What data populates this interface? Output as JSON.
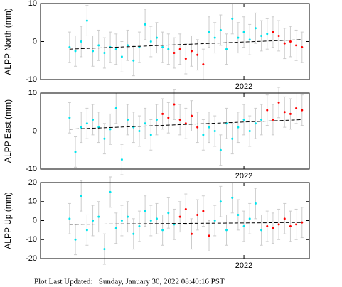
{
  "chart_data": [
    {
      "type": "scatter",
      "ylabel": "ALPP North (mm)",
      "xlim": [
        2021.72,
        2022.09
      ],
      "xticks": [
        2022
      ],
      "ylim": [
        -10,
        10
      ],
      "yticks": [
        -10,
        0,
        10
      ],
      "error": 4,
      "series": [
        {
          "color": "#00e5ee",
          "x": [
            2021.76,
            2021.768,
            2021.776,
            2021.784,
            2021.792,
            2021.8,
            2021.808,
            2021.816,
            2021.824,
            2021.832,
            2021.84,
            2021.848,
            2021.856,
            2021.864,
            2021.872,
            2021.88,
            2021.888,
            2021.896,
            2021.952,
            2021.96,
            2021.968,
            2021.976,
            2021.984,
            2021.992,
            2022.0,
            2022.008,
            2022.016,
            2022.024,
            2022.032
          ],
          "values": [
            -1.5,
            -2.5,
            0,
            5.5,
            -2.5,
            -1,
            -3,
            -1.5,
            -2,
            -4,
            -1,
            -5,
            -1.5,
            4.5,
            0,
            1,
            -1.5,
            -2,
            2.5,
            1,
            3,
            -2,
            6,
            1,
            2.5,
            0.5,
            3.5,
            1.5,
            2
          ]
        },
        {
          "color": "#ff0000",
          "x": [
            2021.904,
            2021.912,
            2021.92,
            2021.928,
            2021.936,
            2021.944,
            2022.04,
            2022.048,
            2022.056,
            2022.064,
            2022.072,
            2022.08
          ],
          "values": [
            -3,
            -2,
            -4.5,
            -2.5,
            -3.5,
            -6,
            2.5,
            1.5,
            -0.5,
            0,
            -1,
            -1.5
          ]
        }
      ],
      "trend": {
        "color": "#000000",
        "x": [
          2021.76,
          2022.08
        ],
        "values": [
          -2,
          0.5
        ]
      }
    },
    {
      "type": "scatter",
      "ylabel": "ALPP East (mm)",
      "xlim": [
        2021.72,
        2022.09
      ],
      "xticks": [
        2022
      ],
      "ylim": [
        -10,
        10
      ],
      "yticks": [
        -10,
        0,
        10
      ],
      "error": 4,
      "series": [
        {
          "color": "#00e5ee",
          "x": [
            2021.76,
            2021.768,
            2021.776,
            2021.784,
            2021.792,
            2021.8,
            2021.808,
            2021.816,
            2021.824,
            2021.832,
            2021.84,
            2021.848,
            2021.856,
            2021.864,
            2021.872,
            2021.88,
            2021.944,
            2021.952,
            2021.96,
            2021.968,
            2021.976,
            2021.984,
            2021.992,
            2022.0,
            2022.008,
            2022.016,
            2022.024
          ],
          "values": [
            3.5,
            -5.5,
            1,
            2,
            3,
            1,
            -2,
            0.5,
            6,
            -7.5,
            3,
            1,
            0,
            2,
            -1,
            3,
            -1,
            1,
            0,
            -5,
            2,
            -2,
            1,
            3,
            0,
            2,
            3
          ]
        },
        {
          "color": "#ff0000",
          "x": [
            2021.888,
            2021.896,
            2021.904,
            2021.912,
            2021.92,
            2021.928,
            2021.936,
            2022.032,
            2022.04,
            2022.048,
            2022.056,
            2022.064,
            2022.072,
            2022.08
          ],
          "values": [
            4.5,
            3.5,
            7,
            3,
            2,
            4,
            1,
            5.5,
            3,
            7.5,
            5,
            4.5,
            6,
            5.5
          ]
        }
      ],
      "trend": {
        "color": "#000000",
        "x": [
          2021.76,
          2022.08
        ],
        "values": [
          0.5,
          3
        ]
      }
    },
    {
      "type": "scatter",
      "ylabel": "ALPP Up (mm)",
      "xlim": [
        2021.72,
        2022.09
      ],
      "xticks": [
        2022
      ],
      "ylim": [
        -20,
        20
      ],
      "yticks": [
        -20,
        -10,
        0,
        10,
        20
      ],
      "error": 8,
      "series": [
        {
          "color": "#00e5ee",
          "x": [
            2021.76,
            2021.768,
            2021.776,
            2021.784,
            2021.792,
            2021.8,
            2021.808,
            2021.816,
            2021.824,
            2021.832,
            2021.84,
            2021.848,
            2021.856,
            2021.864,
            2021.872,
            2021.88,
            2021.888,
            2021.896,
            2021.904,
            2021.96,
            2021.968,
            2021.976,
            2021.984,
            2021.992,
            2022.0,
            2022.008,
            2022.016,
            2022.024
          ],
          "values": [
            1,
            -10,
            13,
            -5,
            0,
            2,
            -15,
            15,
            -4,
            0,
            2,
            -7,
            -3,
            5,
            0,
            1,
            -5,
            4,
            -2,
            0,
            10,
            -5,
            12,
            3,
            -3,
            1,
            9,
            -5
          ]
        },
        {
          "color": "#ff0000",
          "x": [
            2021.912,
            2021.92,
            2021.928,
            2021.936,
            2021.944,
            2021.952,
            2022.032,
            2022.04,
            2022.048,
            2022.056,
            2022.064,
            2022.072,
            2022.08
          ],
          "values": [
            2,
            6,
            -7,
            3,
            5,
            -8,
            -3,
            -4,
            -2,
            1,
            -3,
            -2,
            -1
          ]
        }
      ],
      "trend": {
        "color": "#000000",
        "x": [
          2021.76,
          2022.08
        ],
        "values": [
          -2,
          -1
        ]
      }
    }
  ],
  "footer": "Plot Last Updated:   Sunday, January 30, 2022 08:40:16 PST"
}
